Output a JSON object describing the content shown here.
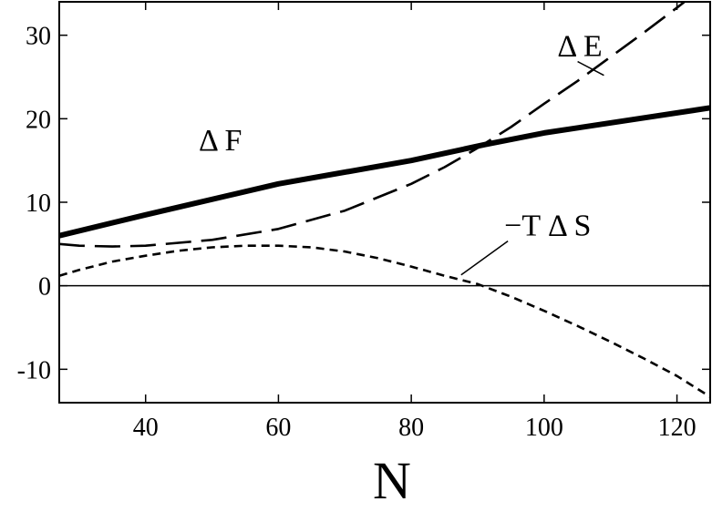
{
  "chart_data": {
    "type": "line",
    "xlabel": "N",
    "ylabel": "",
    "xlim": [
      27,
      125
    ],
    "ylim": [
      -14,
      34
    ],
    "xticks": [
      40,
      60,
      80,
      100,
      120
    ],
    "yticks": [
      -10,
      0,
      10,
      20,
      30
    ],
    "grid": false,
    "series": [
      {
        "name": "Δ F",
        "style": "solid-thick",
        "color": "#000000",
        "x": [
          27,
          40,
          60,
          80,
          91,
          100,
          125
        ],
        "y": [
          6.0,
          8.5,
          12.2,
          15.0,
          16.9,
          18.3,
          21.3
        ]
      },
      {
        "name": "Δ E",
        "style": "long-dash",
        "color": "#000000",
        "x": [
          27,
          30,
          35,
          40,
          50,
          60,
          70,
          80,
          85,
          90,
          95,
          100,
          105,
          110,
          115,
          120,
          125
        ],
        "y": [
          5.0,
          4.8,
          4.7,
          4.8,
          5.5,
          6.8,
          9.0,
          12.2,
          14.2,
          16.5,
          19.0,
          21.8,
          24.5,
          27.4,
          30.3,
          33.3,
          36.4
        ]
      },
      {
        "name": "−T Δ S",
        "style": "short-dash",
        "color": "#000000",
        "x": [
          27,
          30,
          35,
          40,
          45,
          50,
          55,
          60,
          65,
          70,
          75,
          80,
          85,
          90,
          95,
          100,
          105,
          110,
          115,
          120,
          125
        ],
        "y": [
          1.2,
          1.9,
          2.9,
          3.6,
          4.2,
          4.6,
          4.8,
          4.8,
          4.6,
          4.1,
          3.3,
          2.3,
          1.2,
          0.2,
          -1.3,
          -3.0,
          -4.8,
          -6.7,
          -8.7,
          -10.8,
          -13.3
        ]
      }
    ],
    "annotations": [
      {
        "id": "dF",
        "text": "Δ F",
        "x": 48,
        "y": 16.2
      },
      {
        "id": "dE",
        "text": "Δ E",
        "x": 102,
        "y": 27.5,
        "pointer_to": [
          109,
          25.2
        ]
      },
      {
        "id": "TdS",
        "text": "−T Δ S",
        "x": 94,
        "y": 6.0,
        "pointer_to": [
          87.5,
          1.3
        ]
      }
    ]
  }
}
